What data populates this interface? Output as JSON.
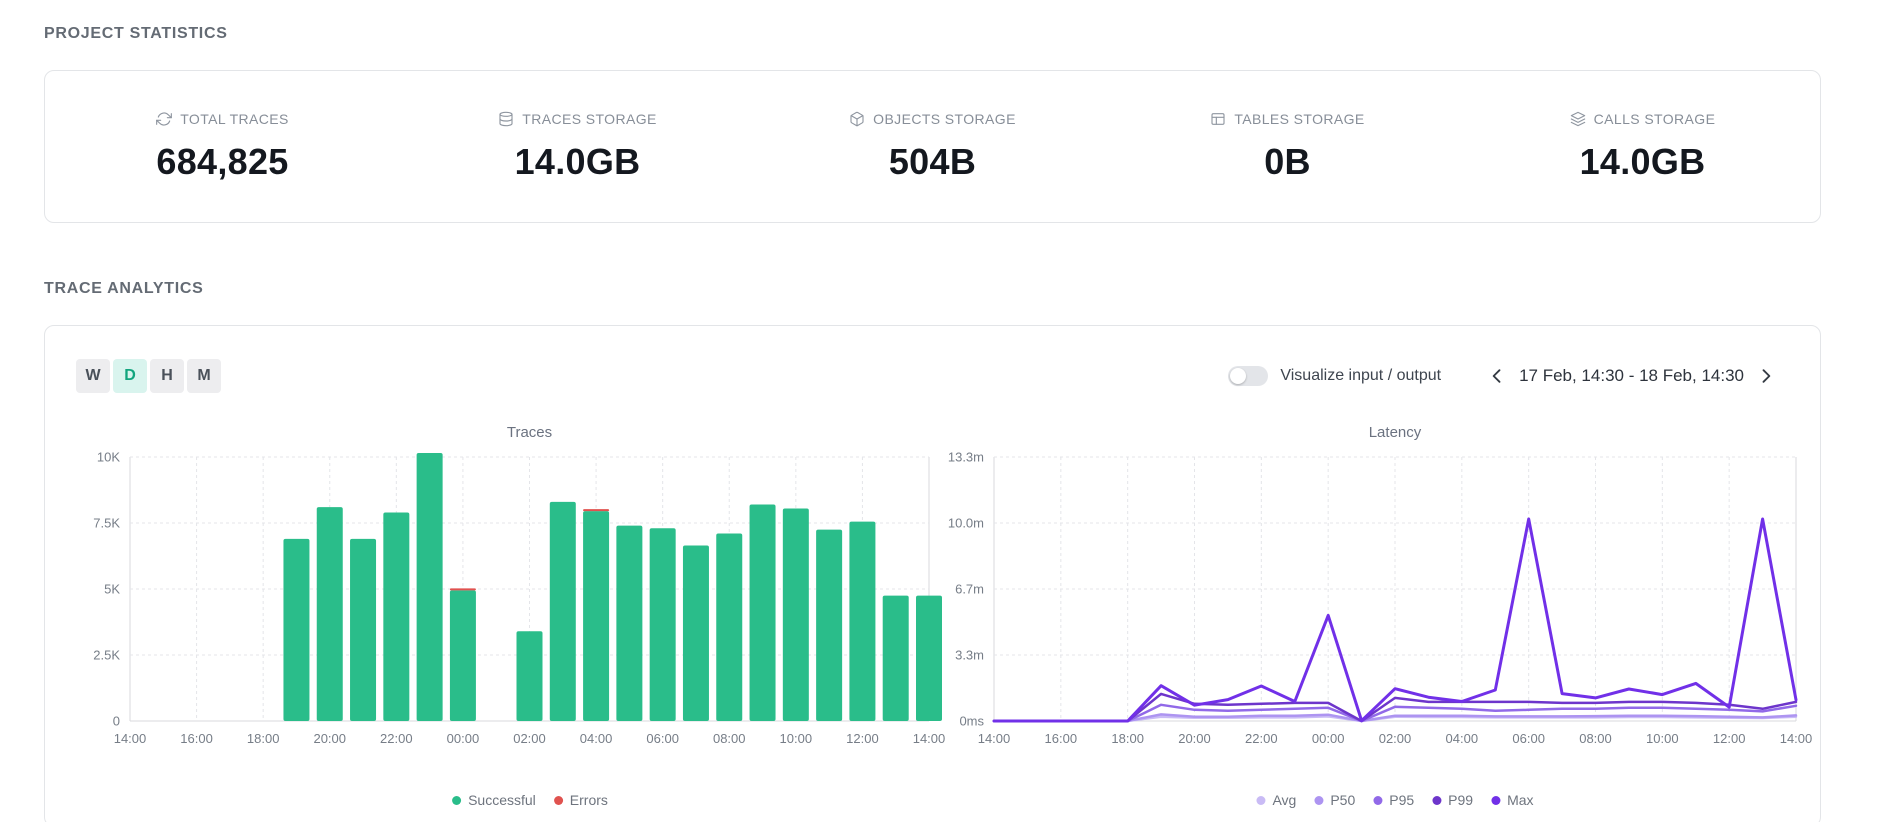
{
  "sections": {
    "project_statistics": "PROJECT STATISTICS",
    "trace_analytics": "TRACE ANALYTICS"
  },
  "stats": [
    {
      "label": "TOTAL TRACES",
      "icon": "refresh-icon",
      "value": "684,825"
    },
    {
      "label": "TRACES STORAGE",
      "icon": "database-icon",
      "value": "14.0GB"
    },
    {
      "label": "OBJECTS STORAGE",
      "icon": "cube-icon",
      "value": "504B"
    },
    {
      "label": "TABLES STORAGE",
      "icon": "table-icon",
      "value": "0B"
    },
    {
      "label": "CALLS STORAGE",
      "icon": "layers-icon",
      "value": "14.0GB"
    }
  ],
  "controls": {
    "granularity": [
      {
        "label": "W",
        "active": false
      },
      {
        "label": "D",
        "active": true
      },
      {
        "label": "H",
        "active": false
      },
      {
        "label": "M",
        "active": false
      }
    ],
    "toggle_label": "Visualize input / output",
    "toggle_on": false,
    "date_range": "17 Feb, 14:30 - 18 Feb, 14:30"
  },
  "colors": {
    "success_green": "#2abd8a",
    "error_red": "#e0524f",
    "active_tab_bg": "#d9f4ee",
    "active_tab_text": "#12a57e"
  },
  "chart_data": [
    {
      "type": "bar",
      "title": "Traces",
      "x": [
        "14:00",
        "15:00",
        "16:00",
        "17:00",
        "18:00",
        "19:00",
        "20:00",
        "21:00",
        "22:00",
        "23:00",
        "00:00",
        "01:00",
        "02:00",
        "03:00",
        "04:00",
        "05:00",
        "06:00",
        "07:00",
        "08:00",
        "09:00",
        "10:00",
        "11:00",
        "12:00",
        "13:00",
        "14:00"
      ],
      "x_tick_every": 2,
      "ylim": [
        0,
        10000
      ],
      "yticks": [
        {
          "value": 0,
          "label": "0"
        },
        {
          "value": 2500,
          "label": "2.5K"
        },
        {
          "value": 5000,
          "label": "5K"
        },
        {
          "value": 7500,
          "label": "7.5K"
        },
        {
          "value": 10000,
          "label": "10K"
        }
      ],
      "stacked": true,
      "grid": true,
      "legend_position": "bottom",
      "series": [
        {
          "name": "Successful",
          "color": "#2abd8a",
          "values": [
            0,
            0,
            0,
            0,
            0,
            6900,
            8100,
            6900,
            7900,
            10150,
            4950,
            0,
            3400,
            8300,
            7950,
            7400,
            7300,
            6650,
            7100,
            8200,
            8050,
            7250,
            7550,
            4750,
            4750
          ]
        },
        {
          "name": "Errors",
          "color": "#e0524f",
          "values": [
            0,
            0,
            0,
            0,
            0,
            0,
            0,
            0,
            0,
            0,
            60,
            0,
            0,
            0,
            60,
            0,
            0,
            0,
            0,
            0,
            0,
            0,
            0,
            0,
            0
          ]
        }
      ]
    },
    {
      "type": "line",
      "title": "Latency",
      "x": [
        "14:00",
        "15:00",
        "16:00",
        "17:00",
        "18:00",
        "19:00",
        "20:00",
        "21:00",
        "22:00",
        "23:00",
        "00:00",
        "01:00",
        "02:00",
        "03:00",
        "04:00",
        "05:00",
        "06:00",
        "07:00",
        "08:00",
        "09:00",
        "10:00",
        "11:00",
        "12:00",
        "13:00",
        "14:00"
      ],
      "x_tick_every": 2,
      "y_unit": "seconds",
      "ylim": [
        0,
        800
      ],
      "yticks": [
        {
          "value": 0,
          "label": "0ms"
        },
        {
          "value": 200,
          "label": "3.3m"
        },
        {
          "value": 400,
          "label": "6.7m"
        },
        {
          "value": 600,
          "label": "10.0m"
        },
        {
          "value": 800,
          "label": "13.3m"
        }
      ],
      "grid": true,
      "legend_position": "bottom",
      "series": [
        {
          "name": "Avg",
          "color": "#c9bbf5",
          "values": [
            0,
            0,
            0,
            0,
            0,
            13,
            10,
            10,
            11,
            11,
            14,
            0,
            13,
            12,
            12,
            11,
            11,
            11,
            11,
            12,
            12,
            11,
            10,
            9,
            13
          ]
        },
        {
          "name": "P50",
          "color": "#ad94f1",
          "values": [
            0,
            0,
            0,
            0,
            0,
            20,
            13,
            13,
            16,
            16,
            19,
            0,
            16,
            16,
            16,
            14,
            14,
            14,
            15,
            16,
            16,
            15,
            13,
            11,
            17
          ]
        },
        {
          "name": "P95",
          "color": "#9169e8",
          "values": [
            0,
            0,
            0,
            0,
            0,
            49,
            34,
            31,
            34,
            37,
            40,
            0,
            43,
            40,
            37,
            31,
            34,
            37,
            37,
            40,
            40,
            37,
            34,
            29,
            46
          ]
        },
        {
          "name": "P99",
          "color": "#6d35cb",
          "values": [
            0,
            0,
            0,
            0,
            0,
            82,
            52,
            49,
            52,
            55,
            55,
            0,
            70,
            58,
            58,
            58,
            58,
            55,
            55,
            58,
            58,
            55,
            49,
            37,
            58
          ]
        },
        {
          "name": "Max",
          "color": "#7130e8",
          "values": [
            0,
            0,
            0,
            0,
            0,
            107,
            48,
            65,
            106,
            59,
            320,
            1,
            98,
            72,
            59,
            94,
            612,
            83,
            70,
            97,
            80,
            114,
            42,
            612,
            64
          ]
        }
      ]
    }
  ]
}
